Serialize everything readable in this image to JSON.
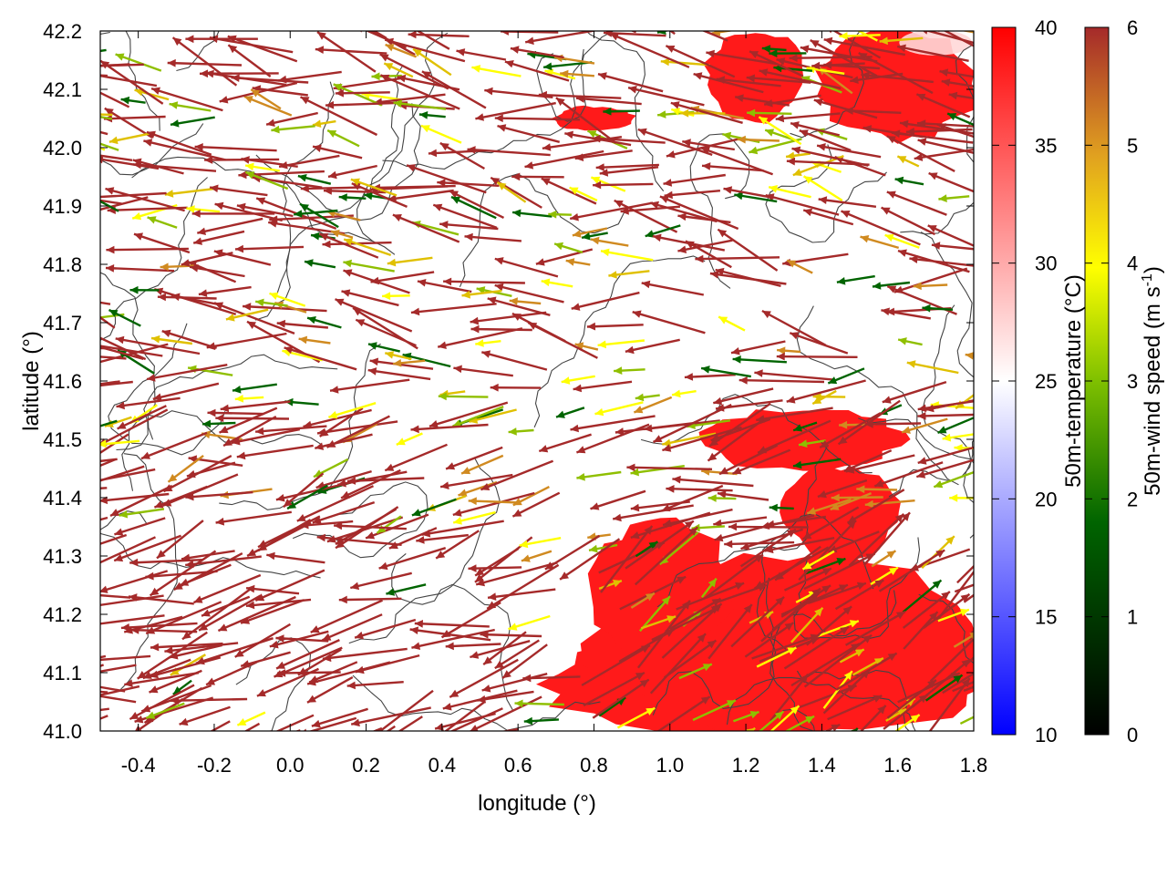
{
  "chart_data": {
    "type": "heatmap",
    "title": "",
    "xlabel": "longitude (°)",
    "ylabel": "latitude (°)",
    "xlim": [
      -0.5,
      1.8
    ],
    "ylim": [
      41.0,
      42.2
    ],
    "x_ticks": [
      "-0.4",
      "-0.2",
      "0.0",
      "0.2",
      "0.4",
      "0.6",
      "0.8",
      "1.0",
      "1.2",
      "1.4",
      "1.6",
      "1.8"
    ],
    "x_tick_values": [
      -0.4,
      -0.2,
      0.0,
      0.2,
      0.4,
      0.6,
      0.8,
      1.0,
      1.2,
      1.4,
      1.6,
      1.8
    ],
    "y_ticks": [
      "41.0",
      "41.1",
      "41.2",
      "41.3",
      "41.4",
      "41.5",
      "41.6",
      "41.7",
      "41.8",
      "41.9",
      "42.0",
      "42.1",
      "42.2"
    ],
    "y_tick_values": [
      41.0,
      41.1,
      41.2,
      41.3,
      41.4,
      41.5,
      41.6,
      41.7,
      41.8,
      41.9,
      42.0,
      42.1,
      42.2
    ],
    "temperature_colorbar": {
      "label": "50m-temperature (°C)",
      "range": [
        10,
        40
      ],
      "ticks": [
        "10",
        "15",
        "20",
        "25",
        "30",
        "35",
        "40"
      ],
      "tick_values": [
        10,
        15,
        20,
        25,
        30,
        35,
        40
      ],
      "colors": [
        "#0000ff",
        "#ffffff",
        "#ff0000"
      ]
    },
    "wind_colorbar": {
      "label": "50m-wind speed (m s",
      "label_sup": "-1",
      "label_end": ")",
      "range": [
        0,
        6
      ],
      "ticks": [
        "0",
        "1",
        "2",
        "3",
        "4",
        "5",
        "6"
      ],
      "tick_values": [
        0,
        1,
        2,
        3,
        4,
        5,
        6
      ],
      "colors": [
        "#000000",
        "#006400",
        "#7fc000",
        "#ffff00",
        "#e0a020",
        "#b05a20",
        "#a52a2a"
      ]
    },
    "hot_regions": [
      {
        "lon": [
          0.68,
          1.8
        ],
        "lat": [
          41.0,
          41.16
        ]
      },
      {
        "lon": [
          0.82,
          1.8
        ],
        "lat": [
          41.0,
          41.3
        ]
      },
      {
        "lon": [
          0.8,
          1.15
        ],
        "lat": [
          41.12,
          41.36
        ]
      },
      {
        "lon": [
          1.1,
          1.6
        ],
        "lat": [
          41.45,
          41.55
        ]
      },
      {
        "lon": [
          1.3,
          1.6
        ],
        "lat": [
          41.3,
          41.45
        ]
      },
      {
        "lon": [
          1.1,
          1.35
        ],
        "lat": [
          42.05,
          42.2
        ]
      },
      {
        "lon": [
          1.4,
          1.8
        ],
        "lat": [
          42.02,
          42.2
        ]
      },
      {
        "lon": [
          0.7,
          0.9
        ],
        "lat": [
          42.03,
          42.07
        ]
      }
    ],
    "vector_field": {
      "dominant_speed": 6,
      "dominant_direction_deg": 165,
      "description_free": true
    }
  }
}
